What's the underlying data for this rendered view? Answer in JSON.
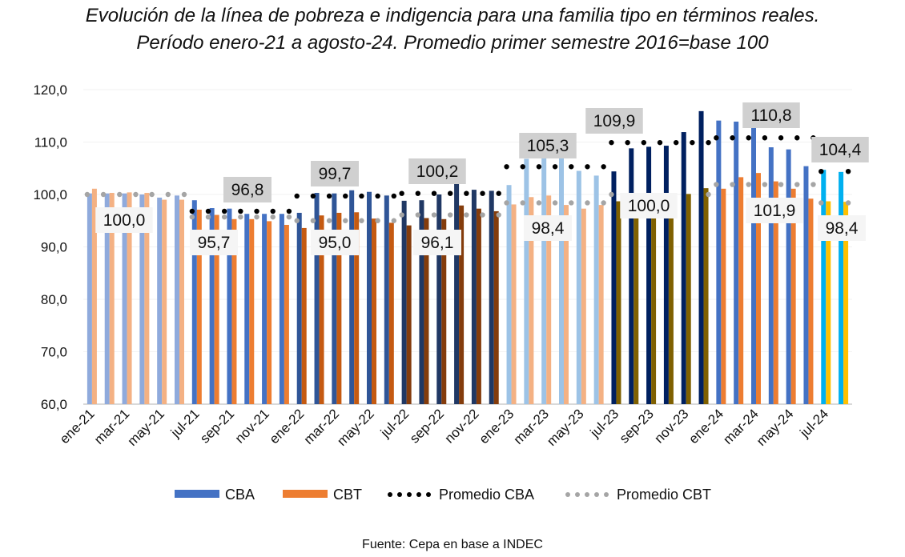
{
  "chart_data": {
    "type": "bar",
    "title": "Evolución de la línea de pobreza e indigencia para una familia tipo en términos reales.",
    "subtitle": "Período enero-21 a agosto-24. Promedio primer semestre 2016=base 100",
    "source": "Fuente: Cepa en base a INDEC",
    "xlabel": "",
    "ylabel": "",
    "ylim": [
      60,
      120
    ],
    "yticks": [
      "60,0",
      "70,0",
      "80,0",
      "90,0",
      "100,0",
      "110,0",
      "120,0"
    ],
    "ytick_values": [
      60,
      70,
      80,
      90,
      100,
      110,
      120
    ],
    "grid": true,
    "legend_position": "bottom",
    "categories": [
      "ene-21",
      "feb-21",
      "mar-21",
      "abr-21",
      "may-21",
      "jun-21",
      "jul-21",
      "ago-21",
      "sep-21",
      "oct-21",
      "nov-21",
      "dic-21",
      "ene-22",
      "feb-22",
      "mar-22",
      "abr-22",
      "may-22",
      "jun-22",
      "jul-22",
      "ago-22",
      "sep-22",
      "oct-22",
      "nov-22",
      "dic-22",
      "ene-23",
      "feb-23",
      "mar-23",
      "abr-23",
      "may-23",
      "jun-23",
      "jul-23",
      "ago-23",
      "sep-23",
      "oct-23",
      "nov-23",
      "dic-23",
      "ene-24",
      "feb-24",
      "mar-24",
      "abr-24",
      "may-24",
      "jun-24",
      "jul-24",
      "ago-24"
    ],
    "xtick_labels": [
      "ene-21",
      "mar-21",
      "may-21",
      "jul-21",
      "sep-21",
      "nov-21",
      "ene-22",
      "mar-22",
      "may-22",
      "jul-22",
      "sep-22",
      "nov-22",
      "ene-23",
      "mar-23",
      "may-23",
      "jul-23",
      "sep-23",
      "nov-23",
      "ene-24",
      "mar-24",
      "may-24",
      "jul-24"
    ],
    "series": [
      {
        "name": "CBA",
        "values": [
          100.2,
          100.2,
          100.2,
          100.0,
          99.4,
          99.8,
          98.9,
          97.4,
          97.3,
          96.3,
          96.3,
          96.3,
          96.5,
          100.3,
          100.2,
          100.8,
          100.5,
          99.8,
          98.8,
          98.9,
          100.0,
          102.3,
          100.9,
          100.7,
          101.8,
          106.8,
          107.6,
          107.0,
          104.5,
          103.6,
          104.4,
          108.8,
          109.1,
          109.3,
          111.9,
          115.9,
          114.1,
          113.9,
          112.7,
          109.0,
          108.6,
          105.4,
          104.7,
          104.3
        ]
      },
      {
        "name": "CBT",
        "values": [
          101.1,
          100.3,
          100.4,
          100.3,
          99.0,
          99.0,
          97.1,
          96.1,
          95.3,
          95.3,
          94.9,
          94.2,
          93.6,
          96.0,
          96.5,
          96.6,
          95.4,
          94.6,
          94.1,
          95.5,
          95.3,
          97.9,
          97.3,
          96.8,
          98.1,
          99.5,
          99.8,
          98.0,
          97.3,
          98.0,
          98.7,
          99.9,
          100.0,
          100.1,
          100.1,
          101.2,
          101.1,
          103.3,
          104.1,
          102.5,
          101.1,
          99.2,
          98.7,
          98.6
        ]
      }
    ],
    "averages": [
      {
        "period": "ene-21 a jun-21",
        "cba": 100.0,
        "cbt": 100.0,
        "cba_label": "",
        "cbt_label": "100,0"
      },
      {
        "period": "jul-21 a dic-21",
        "cba": 96.8,
        "cbt": 95.7,
        "cba_label": "96,8",
        "cbt_label": "95,7"
      },
      {
        "period": "ene-22 a jun-22",
        "cba": 99.7,
        "cbt": 95.0,
        "cba_label": "99,7",
        "cbt_label": "95,0"
      },
      {
        "period": "jul-22 a dic-22",
        "cba": 100.2,
        "cbt": 96.1,
        "cba_label": "100,2",
        "cbt_label": "96,1"
      },
      {
        "period": "ene-23 a jun-23",
        "cba": 105.3,
        "cbt": 98.4,
        "cba_label": "105,3",
        "cbt_label": "98,4"
      },
      {
        "period": "jul-23 a dic-23",
        "cba": 109.9,
        "cbt": 100.0,
        "cba_label": "109,9",
        "cbt_label": "100,0"
      },
      {
        "period": "ene-24 a jun-24",
        "cba": 110.8,
        "cbt": 101.9,
        "cba_label": "110,8",
        "cbt_label": "101,9"
      },
      {
        "period": "jul-24 a ago-24",
        "cba": 104.4,
        "cbt": 98.4,
        "cba_label": "104,4",
        "cbt_label": "98,4"
      }
    ],
    "period_colors": [
      {
        "cba": "#8FAADC",
        "cbt": "#F4B183"
      },
      {
        "cba": "#4472C4",
        "cbt": "#ED7D31"
      },
      {
        "cba": "#2F5597",
        "cbt": "#C55A11"
      },
      {
        "cba": "#203864",
        "cbt": "#843C0C"
      },
      {
        "cba": "#9DC3E6",
        "cbt": "#F4B183"
      },
      {
        "cba": "#002060",
        "cbt": "#7F6000"
      },
      {
        "cba": "#4472C4",
        "cbt": "#ED7D31"
      },
      {
        "cba": "#00B0F0",
        "cbt": "#FFC000"
      }
    ],
    "legend": [
      {
        "label": "CBA",
        "kind": "bar",
        "color": "#4472C4"
      },
      {
        "label": "CBT",
        "kind": "bar",
        "color": "#ED7D31"
      },
      {
        "label": "Promedio CBA",
        "kind": "dots",
        "color": "#000000"
      },
      {
        "label": "Promedio CBT",
        "kind": "dots",
        "color": "#A5A5A5"
      }
    ]
  }
}
